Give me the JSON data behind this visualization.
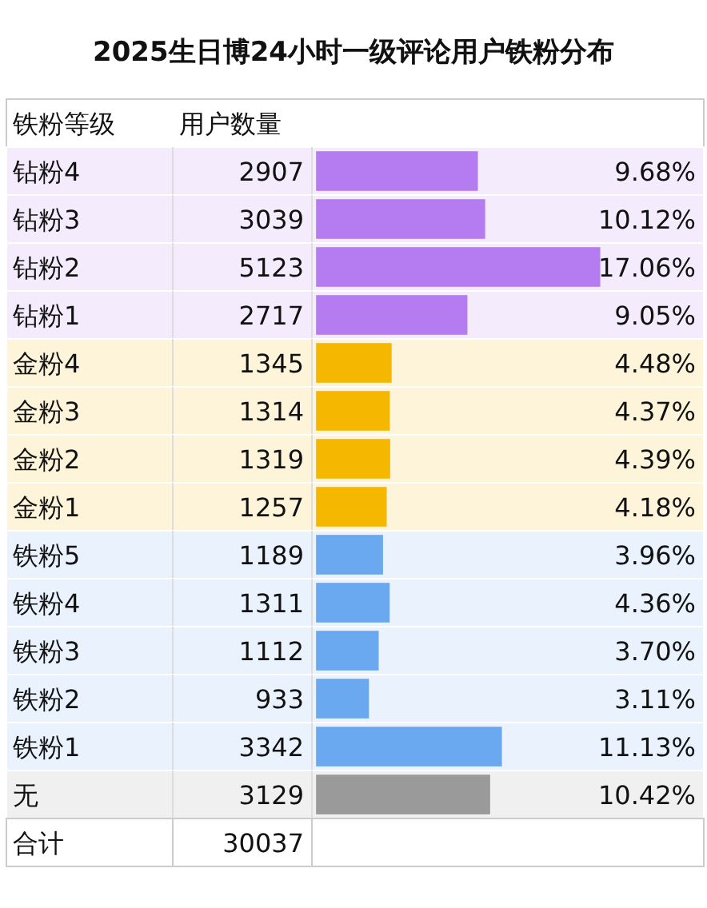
{
  "chart_data": {
    "type": "bar",
    "orientation": "horizontal",
    "title": "2025生日博24小时一级评论用户铁粉分布",
    "ylabel": "铁粉等级",
    "categories": [
      "钻粉4",
      "钻粉3",
      "钻粉2",
      "钻粉1",
      "金粉4",
      "金粉3",
      "金粉2",
      "金粉1",
      "铁粉5",
      "铁粉4",
      "铁粉3",
      "铁粉2",
      "铁粉1",
      "无"
    ],
    "values": [
      9.68,
      10.12,
      17.06,
      9.05,
      4.48,
      4.37,
      4.39,
      4.18,
      3.96,
      4.36,
      3.7,
      3.11,
      11.13,
      10.42
    ],
    "value_labels": [
      "9.68%",
      "10.12%",
      "17.06%",
      "9.05%",
      "4.48%",
      "4.37%",
      "4.39%",
      "4.18%",
      "3.96%",
      "4.36%",
      "3.70%",
      "3.11%",
      "11.13%",
      "10.42%"
    ],
    "colors": [
      "#b57cf2",
      "#b57cf2",
      "#b57cf2",
      "#b57cf2",
      "#f5b700",
      "#f5b700",
      "#f5b700",
      "#f5b700",
      "#6aa8f0",
      "#6aa8f0",
      "#6aa8f0",
      "#6aa8f0",
      "#6aa8f0",
      "#9a9a9a"
    ],
    "annotations": [
      "用户数量",
      "2907",
      "3039",
      "5123",
      "2717",
      "1345",
      "1314",
      "1319",
      "1257",
      "1189",
      "1311",
      "1112",
      "933",
      "3342",
      "3129",
      "合计",
      "30037"
    ]
  }
}
